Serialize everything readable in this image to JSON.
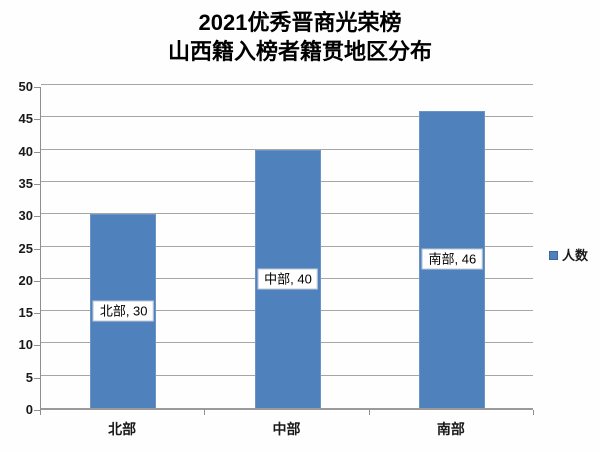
{
  "title": {
    "line1": "2021优秀晋商光荣榜",
    "line2": "山西籍入榜者籍贯地区分布"
  },
  "legend": {
    "label": "人数",
    "marker_color": "#4F81BD"
  },
  "chart_data": {
    "type": "bar",
    "title": "2021优秀晋商光荣榜 山西籍入榜者籍贯地区分布",
    "categories": [
      "北部",
      "中部",
      "南部"
    ],
    "series": [
      {
        "name": "人数",
        "values": [
          30,
          40,
          46
        ]
      }
    ],
    "data_labels": [
      "北部, 30",
      "中部, 40",
      "南部, 46"
    ],
    "xlabel": "",
    "ylabel": "",
    "ylim": [
      0,
      50
    ],
    "ytick_step": 5,
    "yticks": [
      0,
      5,
      10,
      15,
      20,
      25,
      30,
      35,
      40,
      45,
      50
    ],
    "grid": true,
    "legend_position": "right",
    "bar_color": "#4F81BD"
  }
}
